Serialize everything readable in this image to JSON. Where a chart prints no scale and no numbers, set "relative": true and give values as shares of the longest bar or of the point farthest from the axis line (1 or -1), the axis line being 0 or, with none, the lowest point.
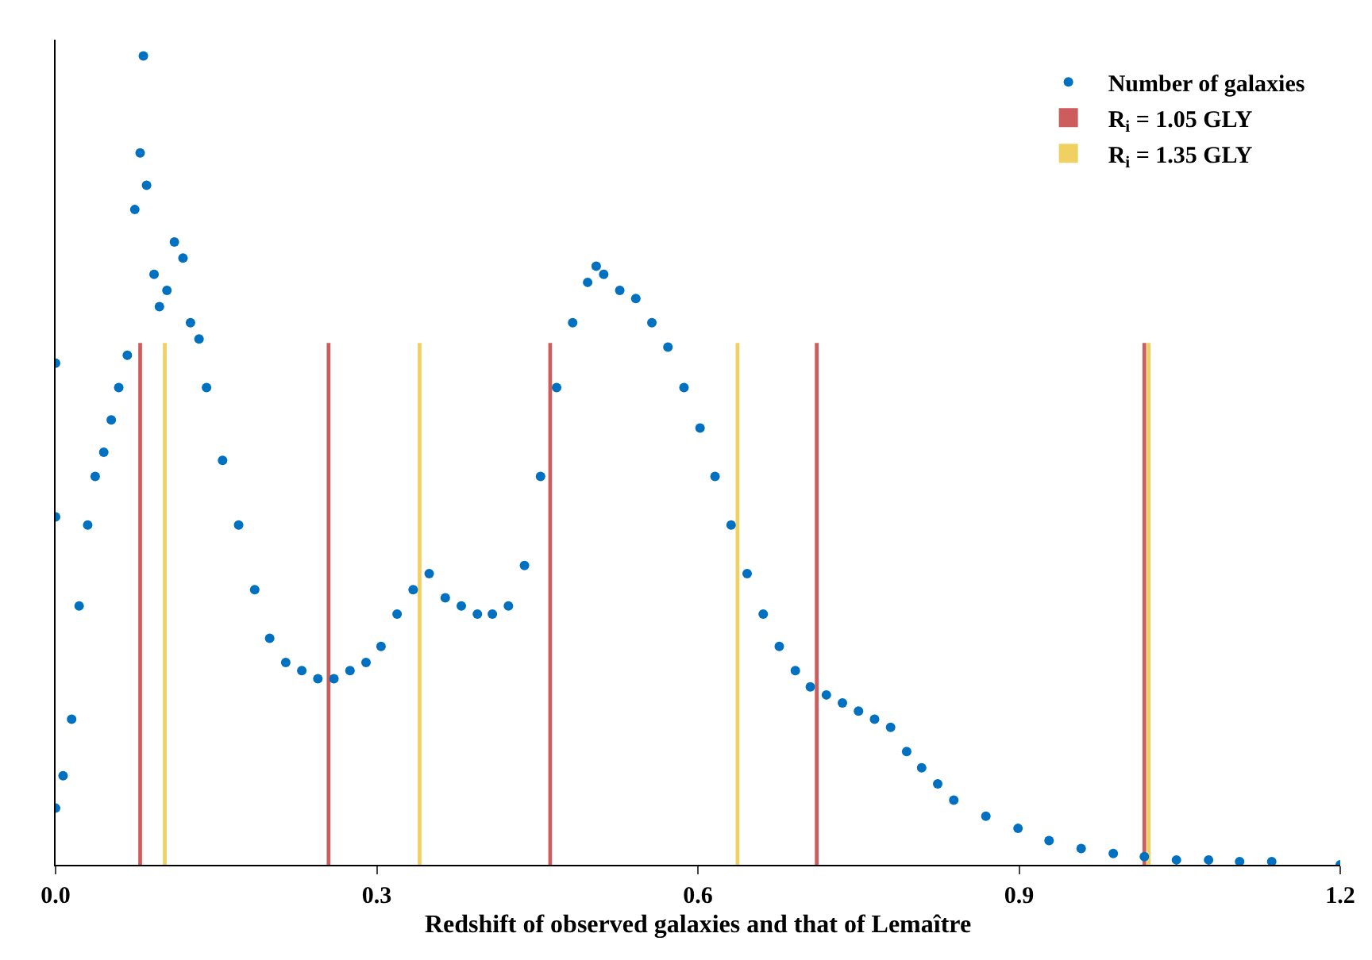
{
  "chart_data": {
    "type": "scatter",
    "relative": true,
    "xlabel": "Redshift of observed galaxies and that of Lemaître",
    "xlim": [
      0,
      1.2
    ],
    "xticks": [
      {
        "value": 0,
        "label": "0.0"
      },
      0.3,
      0.6,
      0.9,
      {
        "value": 1.2,
        "label": "1.2"
      }
    ],
    "legend": "top right",
    "marker": "circle",
    "grid": false,
    "series": [
      {
        "name": "Number of galaxies",
        "color": "#0070c0",
        "x": [
          0,
          0,
          0,
          0.007,
          0.015,
          0.022,
          0.03,
          0.037,
          0.045,
          0.052,
          0.059,
          0.067,
          0.074,
          0.079,
          0.082,
          0.085,
          0.092,
          0.097,
          0.104,
          0.111,
          0.119,
          0.126,
          0.134,
          0.141,
          0.156,
          0.171,
          0.186,
          0.2,
          0.215,
          0.23,
          0.245,
          0.26,
          0.275,
          0.29,
          0.304,
          0.319,
          0.334,
          0.349,
          0.364,
          0.379,
          0.394,
          0.408,
          0.423,
          0.438,
          0.453,
          0.468,
          0.483,
          0.497,
          0.505,
          0.512,
          0.527,
          0.542,
          0.557,
          0.572,
          0.587,
          0.602,
          0.616,
          0.631,
          0.646,
          0.661,
          0.676,
          0.691,
          0.705,
          0.72,
          0.735,
          0.75,
          0.765,
          0.78,
          0.795,
          0.809,
          0.824,
          0.839,
          0.869,
          0.899,
          0.928,
          0.958,
          0.988,
          1.017,
          1.047,
          1.077,
          1.106,
          1.136,
          1.2
        ],
        "values": [
          0.07,
          0.62,
          0.43,
          0.11,
          0.18,
          0.32,
          0.42,
          0.48,
          0.51,
          0.55,
          0.59,
          0.63,
          0.81,
          0.88,
          1,
          0.84,
          0.73,
          0.69,
          0.71,
          0.77,
          0.75,
          0.67,
          0.65,
          0.59,
          0.5,
          0.42,
          0.34,
          0.28,
          0.25,
          0.24,
          0.23,
          0.23,
          0.24,
          0.25,
          0.27,
          0.31,
          0.34,
          0.36,
          0.33,
          0.32,
          0.31,
          0.31,
          0.32,
          0.37,
          0.48,
          0.59,
          0.67,
          0.72,
          0.74,
          0.73,
          0.71,
          0.7,
          0.67,
          0.64,
          0.59,
          0.54,
          0.48,
          0.42,
          0.36,
          0.31,
          0.27,
          0.24,
          0.22,
          0.21,
          0.2,
          0.19,
          0.18,
          0.17,
          0.14,
          0.12,
          0.1,
          0.08,
          0.06,
          0.045,
          0.03,
          0.02,
          0.014,
          0.01,
          0.006,
          0.006,
          0.004,
          0.004,
          0
        ]
      },
      {
        "name": "R$_{i}$ = 1.05 GLY",
        "type": "bar",
        "color": "#cd5c5c",
        "x": [
          0.079,
          0.255,
          0.462,
          0.711,
          1.017
        ],
        "values": [
          0.645,
          0.645,
          0.645,
          0.645,
          0.645
        ]
      },
      {
        "name": "R$_{i}$ = 1.35 GLY",
        "type": "bar",
        "color": "#f0d060",
        "x": [
          0.102,
          0.34,
          0.637,
          1.021
        ],
        "values": [
          0.645,
          0.645,
          0.645,
          0.645
        ]
      }
    ]
  }
}
